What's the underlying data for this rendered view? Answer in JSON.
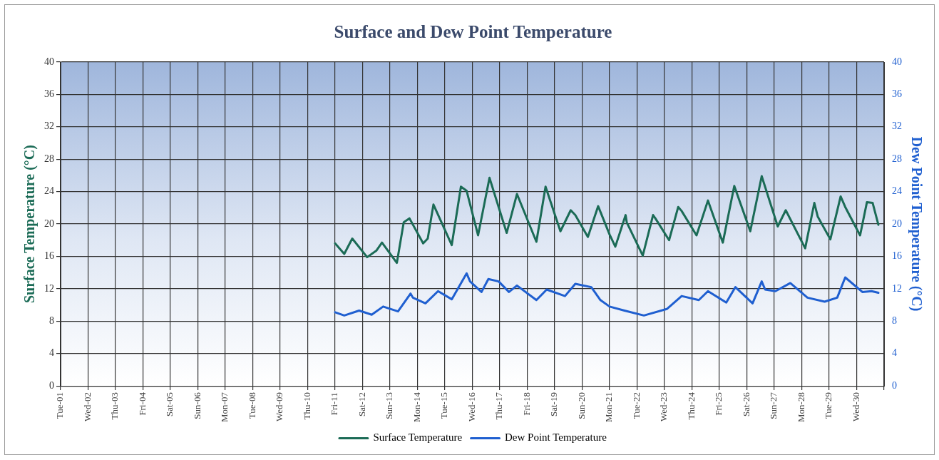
{
  "chart_data": {
    "type": "line",
    "title": "Surface and Dew Point Temperature",
    "ylabel": "Surface Temperature (°C)",
    "y2label": "Dew Point Temperature (°C)",
    "xlim": [
      "--04-01",
      "--05-01"
    ],
    "xticks": [
      {
        "value": "--04-01",
        "label": "Tue-01"
      },
      {
        "value": "--04-02",
        "label": "Wed-02"
      },
      {
        "value": "--04-03",
        "label": "Thu-03"
      },
      {
        "value": "--04-04",
        "label": "Fri-04"
      },
      {
        "value": "--04-05",
        "label": "Sat-05"
      },
      {
        "value": "--04-06",
        "label": "Sun-06"
      },
      {
        "value": "--04-07",
        "label": "Mon-07"
      },
      {
        "value": "--04-08",
        "label": "Tue-08"
      },
      {
        "value": "--04-09",
        "label": "Wed-09"
      },
      {
        "value": "--04-10",
        "label": "Thu-10"
      },
      {
        "value": "--04-11",
        "label": "Fri-11"
      },
      {
        "value": "--04-12",
        "label": "Sat-12"
      },
      {
        "value": "--04-13",
        "label": "Sun-13"
      },
      {
        "value": "--04-14",
        "label": "Mon-14"
      },
      {
        "value": "--04-15",
        "label": "Tue-15"
      },
      {
        "value": "--04-16",
        "label": "Wed-16"
      },
      {
        "value": "--04-17",
        "label": "Thu-17"
      },
      {
        "value": "--04-18",
        "label": "Fri-18"
      },
      {
        "value": "--04-19",
        "label": "Sat-19"
      },
      {
        "value": "--04-20",
        "label": "Sun-20"
      },
      {
        "value": "--04-21",
        "label": "Mon-21"
      },
      {
        "value": "--04-22",
        "label": "Tue-22"
      },
      {
        "value": "--04-23",
        "label": "Wed-23"
      },
      {
        "value": "--04-24",
        "label": "Thu-24"
      },
      {
        "value": "--04-25",
        "label": "Fri-25"
      },
      {
        "value": "--04-26",
        "label": "Sat-26"
      },
      {
        "value": "--04-27",
        "label": "Sun-27"
      },
      {
        "value": "--04-28",
        "label": "Mon-28"
      },
      {
        "value": "--04-29",
        "label": "Tue-29"
      },
      {
        "value": "--04-30",
        "label": "Wed-30"
      },
      {
        "value": "--05-01",
        "label": null
      }
    ],
    "ylim": [
      0,
      40
    ],
    "yticks": [
      0,
      4,
      8,
      12,
      16,
      20,
      24,
      28,
      32,
      36,
      40
    ],
    "y2lim": [
      0,
      40
    ],
    "y2ticks": [
      0,
      4,
      8,
      12,
      16,
      20,
      24,
      28,
      32,
      36,
      40
    ],
    "grid": true,
    "legend": "bottom",
    "marker": "none",
    "line_style": "solid",
    "series": [
      {
        "name": "Surface Temperature",
        "color": "#1b6b56",
        "x": [
          "--04-11T00:00",
          "--04-11T08:00",
          "--04-11T15:00",
          "--04-12T04:00",
          "--04-12T12:00",
          "--04-12T17:00",
          "--04-13T06:00",
          "--04-13T12:00",
          "--04-13T17:00",
          "--04-14T05:00",
          "--04-14T09:00",
          "--04-14T14:00",
          "--04-15T06:00",
          "--04-15T14:00",
          "--04-15T19:00",
          "--04-16T05:00",
          "--04-16T15:00",
          "--04-17T06:00",
          "--04-17T15:00",
          "--04-18T08:00",
          "--04-18T16:00",
          "--04-19T05:00",
          "--04-19T14:00",
          "--04-19T18:00",
          "--04-20T05:00",
          "--04-20T14:00",
          "--04-21T00:00",
          "--04-21T05:00",
          "--04-21T14:00",
          "--04-21T15:00",
          "--04-22T05:00",
          "--04-22T14:00",
          "--04-22T16:00",
          "--04-23T04:00",
          "--04-23T12:00",
          "--04-23T15:00",
          "--04-24T04:00",
          "--04-24T14:00",
          "--04-25T03:00",
          "--04-25T13:00",
          "--04-26T03:00",
          "--04-26T13:00",
          "--04-27T03:00",
          "--04-27T10:00",
          "--04-28T03:00",
          "--04-28T11:00",
          "--04-28T14:00",
          "--04-29T01:00",
          "--04-29T10:00",
          "--04-29T14:00",
          "--04-30T03:00",
          "--04-30T09:00",
          "--04-30T14:00",
          "--04-30T19:00"
        ],
        "values": [
          17.6,
          16.3,
          18.2,
          15.9,
          16.7,
          17.7,
          15.2,
          20.2,
          20.7,
          17.6,
          18.2,
          22.4,
          17.4,
          24.6,
          24.1,
          18.6,
          25.7,
          18.9,
          23.7,
          17.8,
          24.6,
          19.1,
          21.7,
          21.1,
          18.4,
          22.2,
          18.7,
          17.2,
          21.1,
          20.2,
          16.1,
          21.1,
          20.7,
          18.0,
          22.1,
          21.6,
          18.6,
          22.9,
          17.7,
          24.7,
          19.1,
          25.9,
          19.7,
          21.7,
          17.0,
          22.6,
          20.9,
          18.1,
          23.4,
          22.1,
          18.6,
          22.7,
          22.6,
          19.9
        ]
      },
      {
        "name": "Dew Point Temperature",
        "color": "#1f5fd0",
        "axis": "y2",
        "x": [
          "--04-11T00:00",
          "--04-11T08:00",
          "--04-11T21:00",
          "--04-12T08:00",
          "--04-12T18:00",
          "--04-13T07:00",
          "--04-13T18:00",
          "--04-13T20:00",
          "--04-14T07:00",
          "--04-14T18:00",
          "--04-15T06:00",
          "--04-15T19:00",
          "--04-15T22:00",
          "--04-16T08:00",
          "--04-16T14:00",
          "--04-16T23:00",
          "--04-17T08:00",
          "--04-17T15:00",
          "--04-18T08:00",
          "--04-18T17:00",
          "--04-19T09:00",
          "--04-19T18:00",
          "--04-20T08:00",
          "--04-20T16:00",
          "--04-21T00:00",
          "--04-21T13:00",
          "--04-22T06:00",
          "--04-23T02:00",
          "--04-23T15:00",
          "--04-24T06:00",
          "--04-24T14:00",
          "--04-25T06:00",
          "--04-25T14:00",
          "--04-26T05:00",
          "--04-26T13:00",
          "--04-26T16:00",
          "--04-27T01:00",
          "--04-27T14:00",
          "--04-28T05:00",
          "--04-28T20:00",
          "--04-29T07:00",
          "--04-29T14:00",
          "--04-30T05:00",
          "--04-30T13:00",
          "--04-30T19:00"
        ],
        "values": [
          9.1,
          8.7,
          9.3,
          8.8,
          9.8,
          9.2,
          11.4,
          10.9,
          10.2,
          11.7,
          10.7,
          13.9,
          12.9,
          11.6,
          13.2,
          12.9,
          11.6,
          12.4,
          10.6,
          11.9,
          11.1,
          12.6,
          12.2,
          10.6,
          9.8,
          9.3,
          8.7,
          9.5,
          11.1,
          10.6,
          11.7,
          10.3,
          12.2,
          10.2,
          12.9,
          11.9,
          11.7,
          12.7,
          10.9,
          10.4,
          10.9,
          13.4,
          11.6,
          11.7,
          11.5
        ]
      }
    ]
  }
}
